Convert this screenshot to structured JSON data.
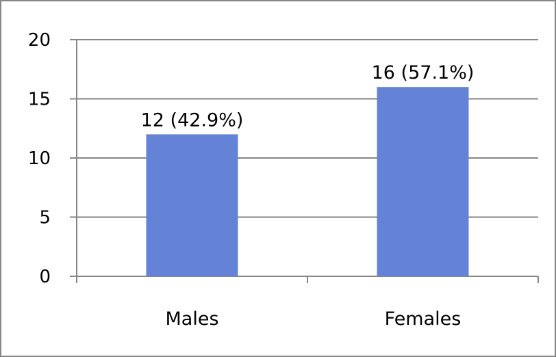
{
  "chart_data": {
    "type": "bar",
    "categories": [
      "Males",
      "Females"
    ],
    "values": [
      12,
      16
    ],
    "data_labels": [
      "12 (42.9%)",
      "16 (57.1%)"
    ],
    "title": "",
    "xlabel": "",
    "ylabel": "",
    "ylim": [
      0,
      20
    ],
    "yticks": [
      0,
      5,
      10,
      15,
      20
    ],
    "grid": true,
    "legend": "none",
    "bar_color": "#6483d7",
    "grid_color": "#868686"
  }
}
